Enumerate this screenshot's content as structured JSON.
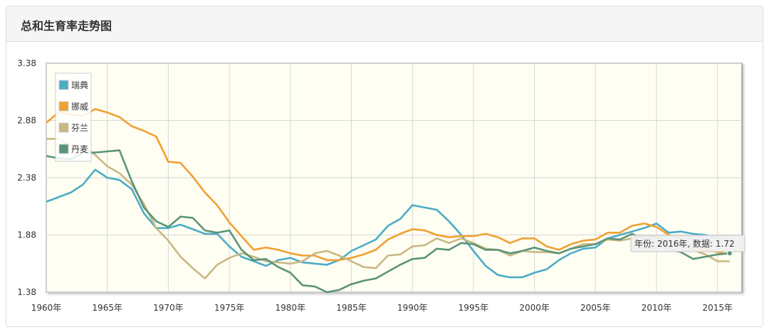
{
  "panel": {
    "title": "总和生育率走势图"
  },
  "chart_data": {
    "type": "line",
    "ylim": [
      1.38,
      3.38
    ],
    "yticks": [
      "1.38",
      "1.88",
      "2.38",
      "2.88",
      "3.38"
    ],
    "xlim": [
      1960,
      2017
    ],
    "xticks": [
      {
        "value": 1960,
        "label": "1960年"
      },
      {
        "value": 1965,
        "label": "1965年"
      },
      {
        "value": 1970,
        "label": "1970年"
      },
      {
        "value": 1975,
        "label": "1975年"
      },
      {
        "value": 1980,
        "label": "1980年"
      },
      {
        "value": 1985,
        "label": "1985年"
      },
      {
        "value": 1990,
        "label": "1990年"
      },
      {
        "value": 1995,
        "label": "1995年"
      },
      {
        "value": 2000,
        "label": "2000年"
      },
      {
        "value": 2005,
        "label": "2005年"
      },
      {
        "value": 2010,
        "label": "2010年"
      },
      {
        "value": 2015,
        "label": "2015年"
      }
    ],
    "grid": true,
    "legend_position": "top-left",
    "x": [
      1960,
      1961,
      1962,
      1963,
      1964,
      1965,
      1966,
      1967,
      1968,
      1969,
      1970,
      1971,
      1972,
      1973,
      1974,
      1975,
      1976,
      1977,
      1978,
      1979,
      1980,
      1981,
      1982,
      1983,
      1984,
      1985,
      1986,
      1987,
      1988,
      1989,
      1990,
      1991,
      1992,
      1993,
      1994,
      1995,
      1996,
      1997,
      1998,
      1999,
      2000,
      2001,
      2002,
      2003,
      2004,
      2005,
      2006,
      2007,
      2008,
      2009,
      2010,
      2011,
      2012,
      2013,
      2014,
      2015,
      2016
    ],
    "series": [
      {
        "name": "瑞典",
        "color": "#4bacc6",
        "values": [
          2.17,
          2.21,
          2.25,
          2.32,
          2.45,
          2.38,
          2.36,
          2.28,
          2.07,
          1.94,
          1.94,
          1.97,
          1.93,
          1.89,
          1.89,
          1.78,
          1.69,
          1.65,
          1.61,
          1.66,
          1.68,
          1.64,
          1.63,
          1.62,
          1.66,
          1.74,
          1.79,
          1.84,
          1.96,
          2.02,
          2.14,
          2.12,
          2.1,
          2.0,
          1.88,
          1.74,
          1.61,
          1.53,
          1.51,
          1.51,
          1.55,
          1.58,
          1.66,
          1.72,
          1.76,
          1.77,
          1.85,
          1.88,
          1.91,
          1.94,
          1.98,
          1.9,
          1.91,
          1.89,
          1.88,
          1.85,
          1.85
        ]
      },
      {
        "name": "挪威",
        "color": "#f0a030",
        "values": [
          2.86,
          2.95,
          2.93,
          2.92,
          2.98,
          2.95,
          2.91,
          2.83,
          2.79,
          2.74,
          2.52,
          2.51,
          2.39,
          2.25,
          2.14,
          1.99,
          1.87,
          1.75,
          1.77,
          1.75,
          1.72,
          1.7,
          1.7,
          1.66,
          1.66,
          1.68,
          1.71,
          1.75,
          1.84,
          1.89,
          1.93,
          1.92,
          1.88,
          1.86,
          1.87,
          1.87,
          1.89,
          1.86,
          1.81,
          1.85,
          1.85,
          1.78,
          1.75,
          1.8,
          1.83,
          1.84,
          1.9,
          1.9,
          1.96,
          1.98,
          1.95,
          1.88,
          1.85,
          1.78,
          1.75,
          1.73,
          1.71
        ]
      },
      {
        "name": "芬兰",
        "color": "#c8b882",
        "values": [
          2.72,
          2.72,
          2.66,
          2.66,
          2.58,
          2.48,
          2.42,
          2.32,
          2.15,
          1.94,
          1.83,
          1.69,
          1.59,
          1.5,
          1.62,
          1.68,
          1.72,
          1.69,
          1.65,
          1.64,
          1.63,
          1.65,
          1.72,
          1.74,
          1.7,
          1.65,
          1.6,
          1.59,
          1.7,
          1.71,
          1.78,
          1.79,
          1.85,
          1.81,
          1.85,
          1.81,
          1.76,
          1.75,
          1.7,
          1.74,
          1.73,
          1.73,
          1.72,
          1.76,
          1.8,
          1.8,
          1.84,
          1.83,
          1.85,
          1.86,
          1.87,
          1.83,
          1.8,
          1.75,
          1.71,
          1.65,
          1.65
        ]
      },
      {
        "name": "丹麦",
        "color": "#5a9478",
        "values": [
          2.57,
          2.55,
          2.54,
          2.6,
          2.6,
          2.61,
          2.62,
          2.35,
          2.12,
          2.0,
          1.95,
          2.04,
          2.03,
          1.92,
          1.9,
          1.92,
          1.75,
          1.66,
          1.67,
          1.6,
          1.55,
          1.44,
          1.43,
          1.38,
          1.4,
          1.45,
          1.48,
          1.5,
          1.56,
          1.62,
          1.67,
          1.68,
          1.76,
          1.75,
          1.81,
          1.8,
          1.75,
          1.75,
          1.72,
          1.74,
          1.77,
          1.74,
          1.72,
          1.76,
          1.78,
          1.8,
          1.85,
          1.84,
          1.89,
          1.84,
          1.87,
          1.75,
          1.73,
          1.67,
          1.69,
          1.71,
          1.72
        ]
      }
    ],
    "tooltip": {
      "text": "年份: 2016年, 数据: 1.72",
      "year": 2016,
      "value": 1.72
    }
  }
}
